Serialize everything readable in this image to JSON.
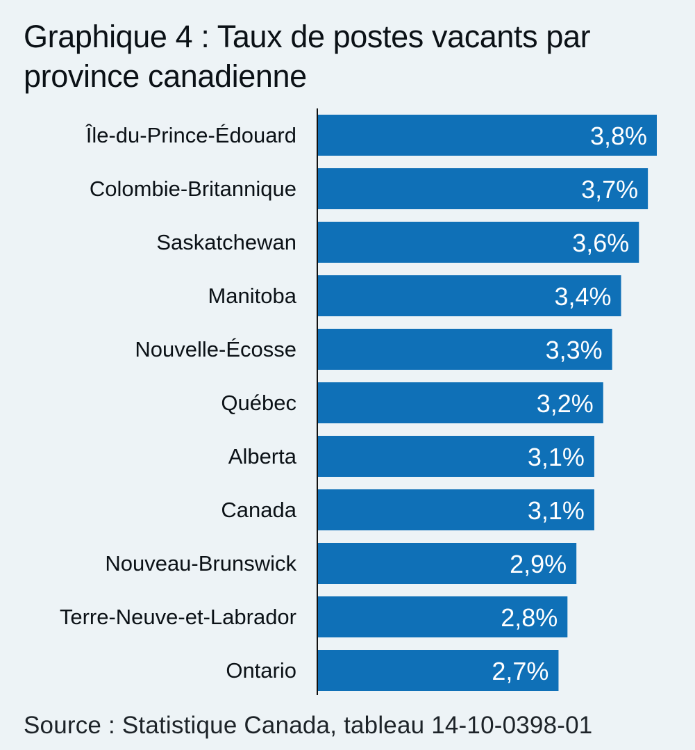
{
  "colors": {
    "background": "#edf3f6",
    "bar": "#0f70b7",
    "axis": "#111111",
    "label": "#0b1116",
    "value": "#ffffff"
  },
  "chart_data": {
    "type": "bar",
    "orientation": "horizontal",
    "title": "Graphique 4 : Taux de postes vacants par province canadienne",
    "categories": [
      "Île-du-Prince-Édouard",
      "Colombie-Britannique",
      "Saskatchewan",
      "Manitoba",
      "Nouvelle-Écosse",
      "Québec",
      "Alberta",
      "Canada",
      "Nouveau-Brunswick",
      "Terre-Neuve-et-Labrador",
      "Ontario"
    ],
    "values": [
      3.8,
      3.7,
      3.6,
      3.4,
      3.3,
      3.2,
      3.1,
      3.1,
      2.9,
      2.8,
      2.7
    ],
    "value_labels": [
      "3,8%",
      "3,7%",
      "3,6%",
      "3,4%",
      "3,3%",
      "3,2%",
      "3,1%",
      "3,1%",
      "2,9%",
      "2,8%",
      "2,7%"
    ],
    "xlim": [
      0,
      3.8
    ],
    "grid": false,
    "legend": "none"
  },
  "footer": {
    "source": "Source : Statistique Canada, tableau 14-10-0398-01"
  }
}
